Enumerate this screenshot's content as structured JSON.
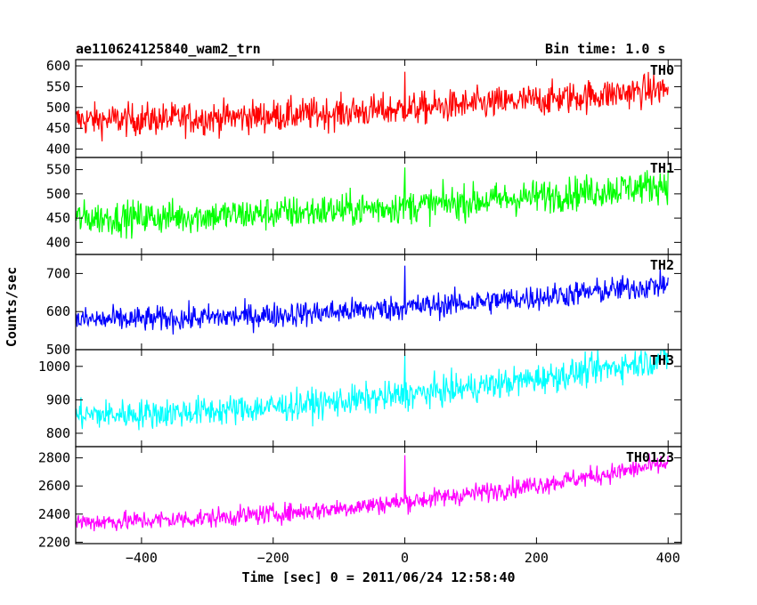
{
  "header": {
    "title": "ae110624125840_wam2_trn",
    "bin_time": "Bin time: 1.0 s"
  },
  "chart_data": {
    "type": "line",
    "x_label": "Time [sec] 0 = 2011/06/24 12:58:40",
    "y_label": "Counts/sec",
    "x_range": [
      -500,
      420
    ],
    "x_ticks": [
      -400,
      -200,
      0,
      200,
      400
    ],
    "x_tick_labels": [
      "−400",
      "−200",
      "0",
      "200",
      "400"
    ],
    "panels": [
      {
        "name": "TH0",
        "color": "#ff0000",
        "y_range": [
          380,
          615
        ],
        "y_ticks": [
          400,
          450,
          500,
          550,
          600
        ],
        "start_level": 470,
        "end_level": 545,
        "noise": 28,
        "spike": 90
      },
      {
        "name": "TH1",
        "color": "#00ff00",
        "y_range": [
          375,
          575
        ],
        "y_ticks": [
          400,
          450,
          500,
          550
        ],
        "start_level": 450,
        "end_level": 520,
        "noise": 25,
        "spike": 80
      },
      {
        "name": "TH2",
        "color": "#0000ff",
        "y_range": [
          500,
          750
        ],
        "y_ticks": [
          500,
          600,
          700
        ],
        "start_level": 578,
        "end_level": 672,
        "noise": 24,
        "spike": 110
      },
      {
        "name": "TH3",
        "color": "#00ffff",
        "y_range": [
          760,
          1050
        ],
        "y_ticks": [
          800,
          900,
          1000
        ],
        "start_level": 855,
        "end_level": 1025,
        "noise": 32,
        "spike": 120
      },
      {
        "name": "TH0123",
        "color": "#ff00ff",
        "y_range": [
          2190,
          2880
        ],
        "y_ticks": [
          2200,
          2400,
          2600,
          2800
        ],
        "start_level": 2345,
        "end_level": 2760,
        "noise": 50,
        "spike": 330
      }
    ]
  }
}
